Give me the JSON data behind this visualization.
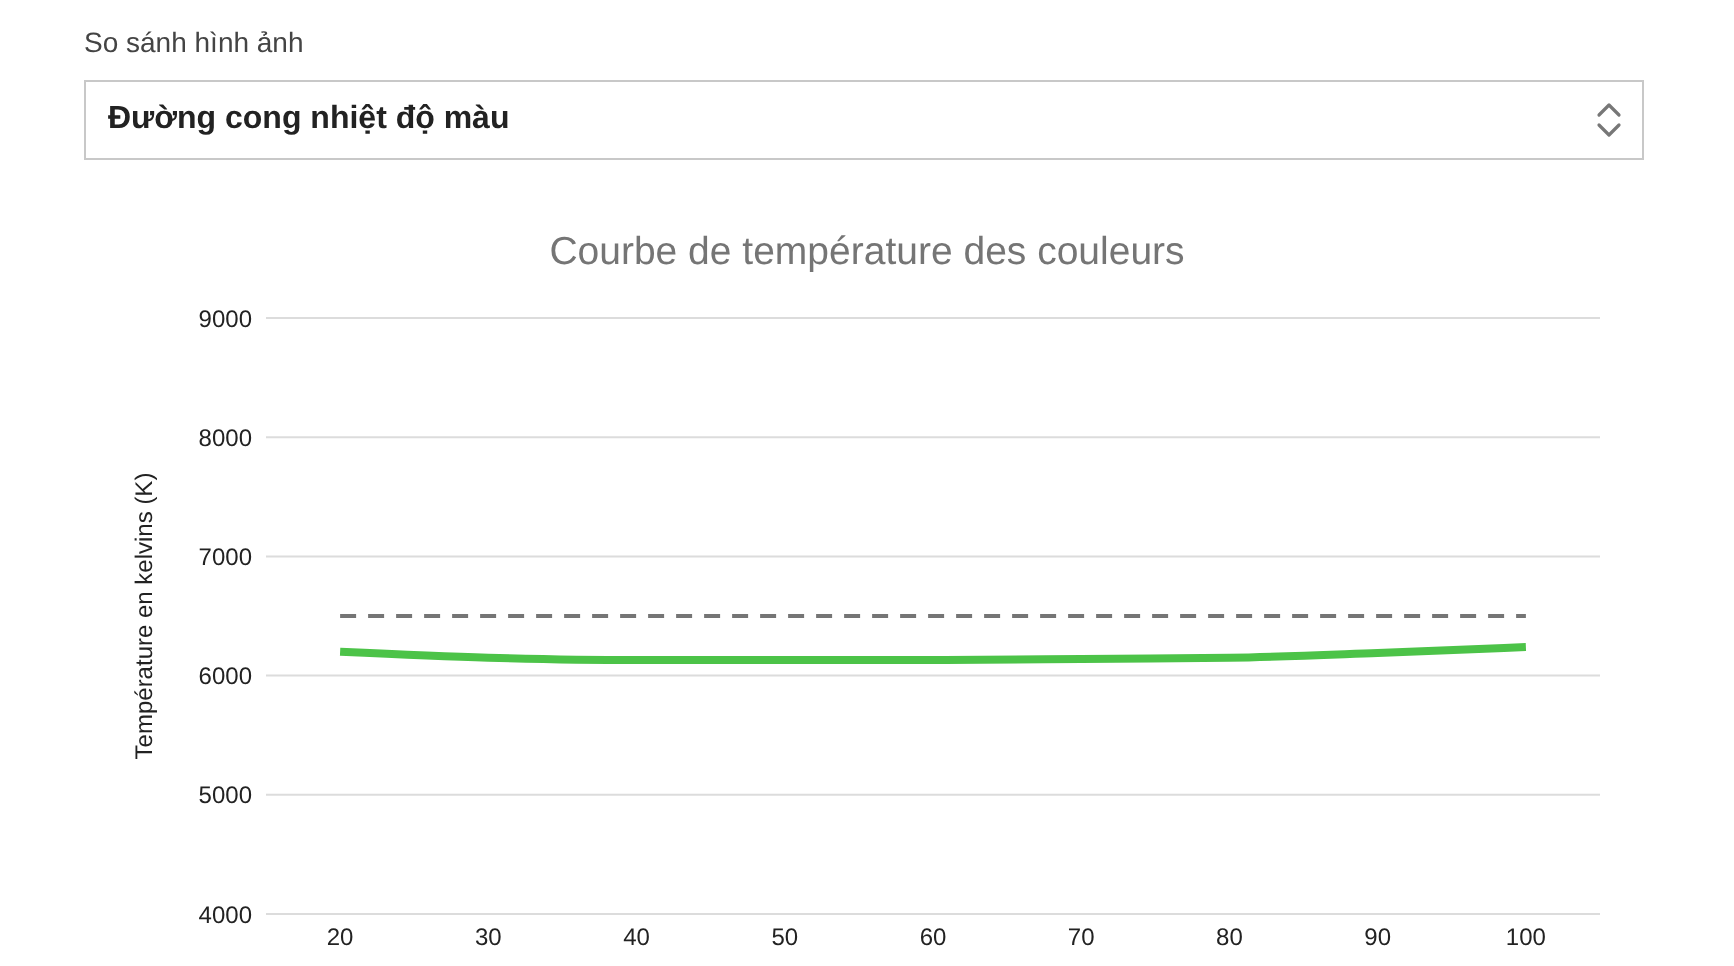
{
  "chart_data": {
    "type": "line",
    "title": "Courbe de température des couleurs",
    "ylabel": "Température en kelvins (K)",
    "annotations": [
      "So sánh hình ảnh",
      "Đường cong nhiệt độ màu"
    ],
    "categories": [
      "20",
      "30",
      "40",
      "50",
      "60",
      "70",
      "80",
      "90",
      "100"
    ],
    "series": [
      {
        "color": "#4cc348",
        "values": [
          6200,
          6150,
          6130,
          6130,
          6130,
          6140,
          6150,
          6190,
          6240
        ]
      },
      {
        "color": "#757575",
        "line_style": "dashed",
        "values": [
          6500,
          6500,
          6500,
          6500,
          6500,
          6500,
          6500,
          6500,
          6500
        ]
      }
    ],
    "ylim": [
      4000,
      9000
    ],
    "yticks": [
      4000,
      5000,
      6000,
      7000,
      8000,
      9000
    ],
    "grid": "y",
    "marker": "none"
  }
}
